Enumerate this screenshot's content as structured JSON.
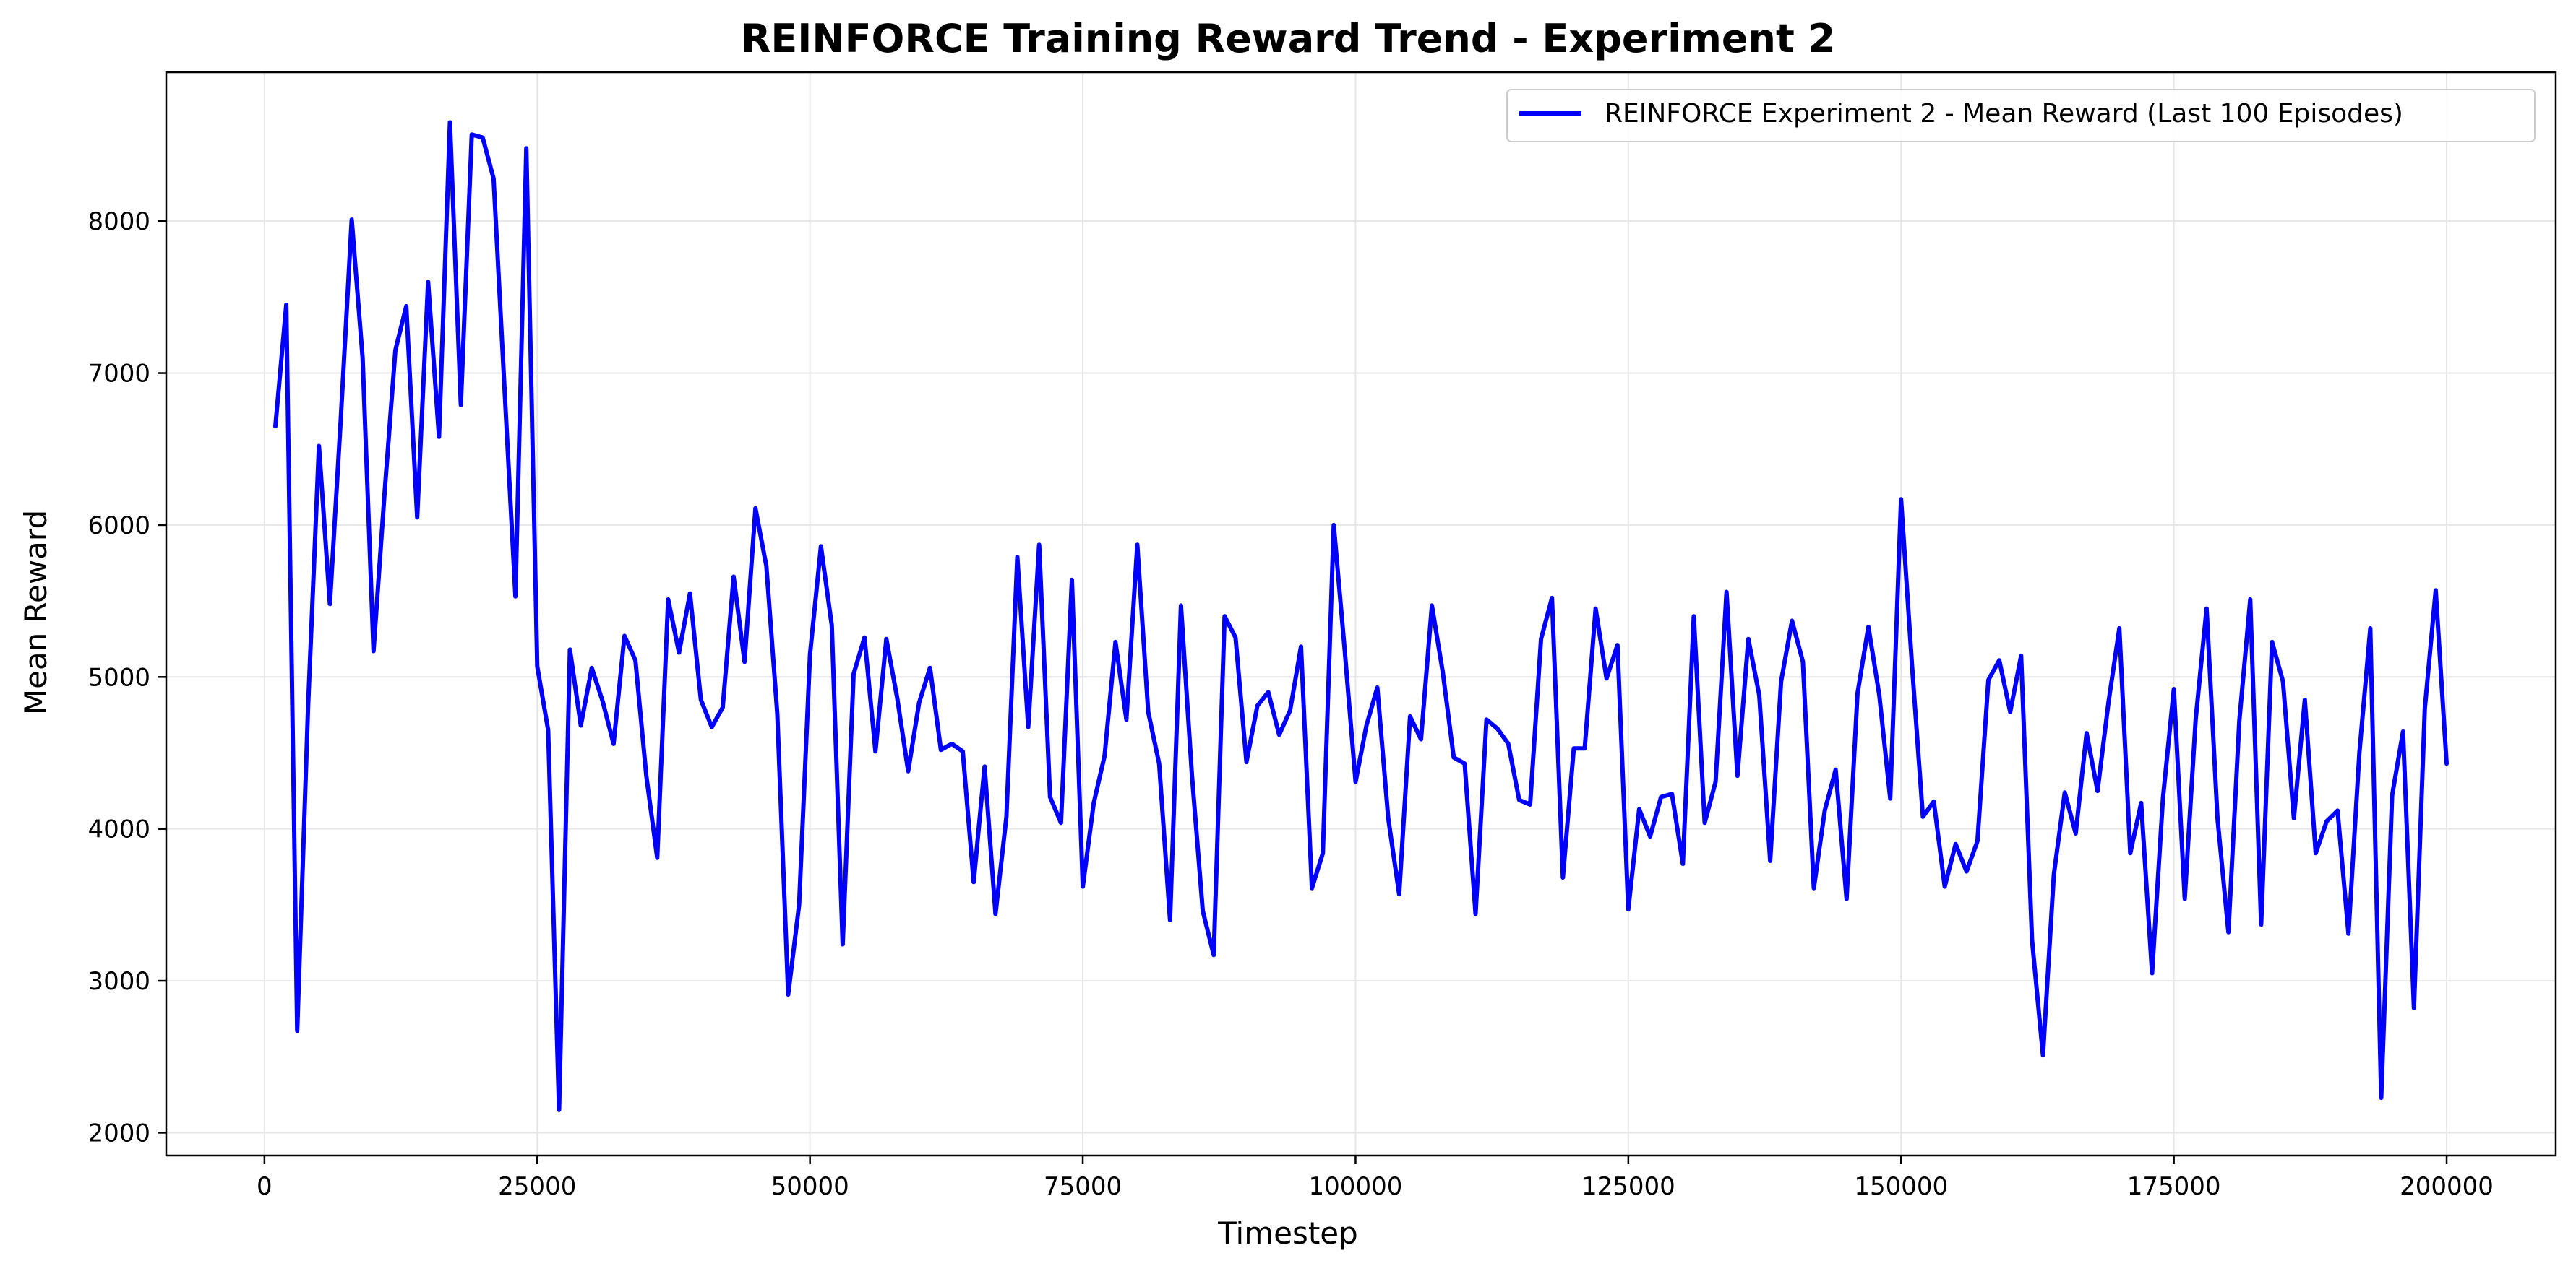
{
  "chart_data": {
    "type": "line",
    "title": "REINFORCE Training Reward Trend - Experiment 2",
    "xlabel": "Timestep",
    "ylabel": "Mean Reward",
    "xlim": [
      -9000,
      210000
    ],
    "ylim": [
      1850,
      8980
    ],
    "x_ticks": [
      0,
      25000,
      50000,
      75000,
      100000,
      125000,
      150000,
      175000,
      200000
    ],
    "y_ticks": [
      2000,
      3000,
      4000,
      5000,
      6000,
      7000,
      8000
    ],
    "grid": true,
    "legend_position": "top-right",
    "colors": {
      "line": "#0000ff",
      "grid": "#e6e6e6"
    },
    "series": [
      {
        "name": "REINFORCE Experiment 2 - Mean Reward (Last 100 Episodes)",
        "x": [
          1000,
          2000,
          3000,
          4000,
          5000,
          6000,
          7000,
          8000,
          9000,
          10000,
          11000,
          12000,
          13000,
          14000,
          15000,
          16000,
          17000,
          18000,
          19000,
          20000,
          21000,
          22000,
          23000,
          24000,
          25000,
          26000,
          27000,
          28000,
          29000,
          30000,
          31000,
          32000,
          33000,
          34000,
          35000,
          36000,
          37000,
          38000,
          39000,
          40000,
          41000,
          42000,
          43000,
          44000,
          45000,
          46000,
          47000,
          48000,
          49000,
          50000,
          51000,
          52000,
          53000,
          54000,
          55000,
          56000,
          57000,
          58000,
          59000,
          60000,
          61000,
          62000,
          63000,
          64000,
          65000,
          66000,
          67000,
          68000,
          69000,
          70000,
          71000,
          72000,
          73000,
          74000,
          75000,
          76000,
          77000,
          78000,
          79000,
          80000,
          81000,
          82000,
          83000,
          84000,
          85000,
          86000,
          87000,
          88000,
          89000,
          90000,
          91000,
          92000,
          93000,
          94000,
          95000,
          96000,
          97000,
          98000,
          99000,
          100000,
          101000,
          102000,
          103000,
          104000,
          105000,
          106000,
          107000,
          108000,
          109000,
          110000,
          111000,
          112000,
          113000,
          114000,
          115000,
          116000,
          117000,
          118000,
          119000,
          120000,
          121000,
          122000,
          123000,
          124000,
          125000,
          126000,
          127000,
          128000,
          129000,
          130000,
          131000,
          132000,
          133000,
          134000,
          135000,
          136000,
          137000,
          138000,
          139000,
          140000,
          141000,
          142000,
          143000,
          144000,
          145000,
          146000,
          147000,
          148000,
          149000,
          150000,
          151000,
          152000,
          153000,
          154000,
          155000,
          156000,
          157000,
          158000,
          159000,
          160000,
          161000,
          162000,
          163000,
          164000,
          165000,
          166000,
          167000,
          168000,
          169000,
          170000,
          171000,
          172000,
          173000,
          174000,
          175000,
          176000,
          177000,
          178000,
          179000,
          180000,
          181000,
          182000,
          183000,
          184000,
          185000,
          186000,
          187000,
          188000,
          189000,
          190000,
          191000,
          192000,
          193000,
          194000,
          195000,
          196000,
          197000,
          198000,
          199000,
          200000
        ],
        "y": [
          6650,
          7450,
          2670,
          4800,
          6520,
          5480,
          6700,
          8010,
          7100,
          5170,
          6200,
          7150,
          7440,
          6050,
          7600,
          6580,
          8650,
          6790,
          8570,
          8550,
          8280,
          6900,
          5530,
          8480,
          5070,
          4650,
          2150,
          5180,
          4680,
          5060,
          4840,
          4560,
          5270,
          5110,
          4350,
          3810,
          5510,
          5160,
          5550,
          4850,
          4670,
          4800,
          5660,
          5100,
          6110,
          5730,
          4760,
          2910,
          3500,
          5150,
          5860,
          5340,
          3240,
          5020,
          5260,
          4510,
          5250,
          4860,
          4380,
          4830,
          5060,
          4520,
          4560,
          4510,
          3650,
          4410,
          3440,
          4080,
          5790,
          4670,
          5870,
          4210,
          4040,
          5640,
          3620,
          4170,
          4480,
          5230,
          4720,
          5870,
          4770,
          4430,
          3400,
          5470,
          4360,
          3460,
          3170,
          5400,
          5260,
          4440,
          4810,
          4900,
          4620,
          4780,
          5200,
          3610,
          3840,
          6000,
          5180,
          4310,
          4680,
          4930,
          4070,
          3570,
          4740,
          4590,
          5470,
          5030,
          4470,
          4430,
          3440,
          4720,
          4660,
          4560,
          4190,
          4160,
          5250,
          5520,
          3680,
          4530,
          4530,
          5450,
          4990,
          5210,
          3470,
          4130,
          3950,
          4210,
          4230,
          3770,
          5400,
          4040,
          4310,
          5560,
          4350,
          5250,
          4880,
          3790,
          4970,
          5370,
          5100,
          3610,
          4120,
          4390,
          3540,
          4890,
          5330,
          4880,
          4200,
          6170,
          5080,
          4080,
          4180,
          3620,
          3900,
          3720,
          3920,
          4980,
          5110,
          4770,
          5140,
          3270,
          2510,
          3700,
          4240,
          3970,
          4630,
          4250,
          4830,
          5320,
          3840,
          4170,
          3050,
          4200,
          4920,
          3540,
          4720,
          5450,
          4070,
          3320,
          4710,
          5510,
          3370,
          5230,
          4970,
          4070,
          4850,
          3840,
          4050,
          4120,
          3310,
          4500,
          5320,
          2230,
          4220,
          4640,
          2820,
          4790,
          5570,
          4430
        ]
      }
    ]
  }
}
